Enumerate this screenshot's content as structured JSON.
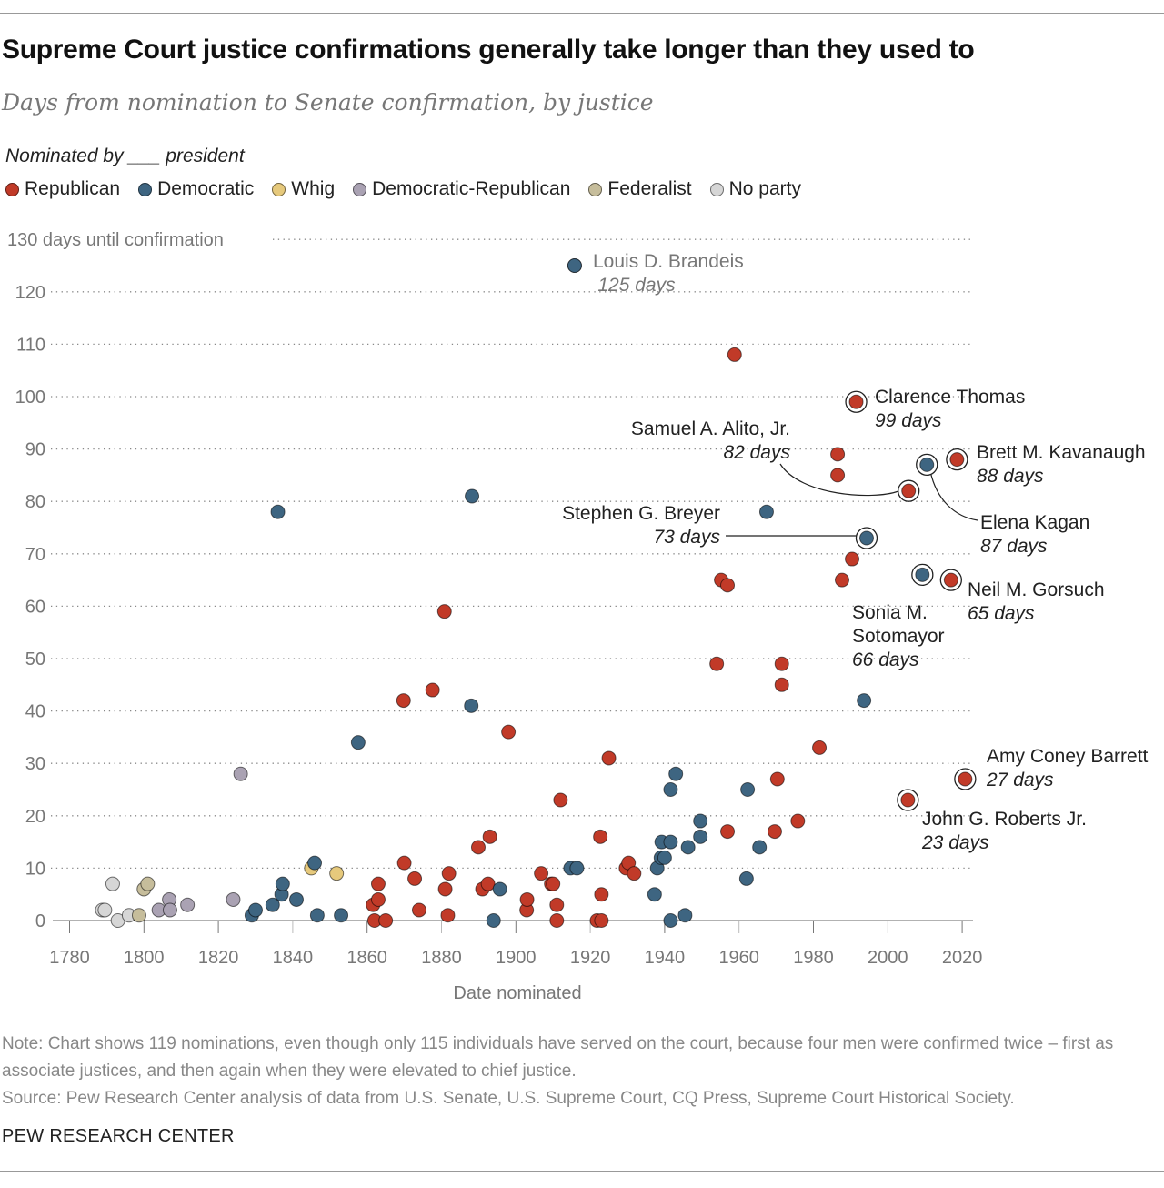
{
  "title": "Supreme Court justice confirmations generally take longer than they used to",
  "subtitle": "Days from nomination to Senate confirmation, by justice",
  "legend_title": "Nominated by ___ president",
  "parties": [
    {
      "key": "R",
      "name": "Republican",
      "color": "#c13a28"
    },
    {
      "key": "D",
      "name": "Democratic",
      "color": "#3e6581"
    },
    {
      "key": "W",
      "name": "Whig",
      "color": "#e6c97c"
    },
    {
      "key": "DR",
      "name": "Democratic-Republican",
      "color": "#aaa2b3"
    },
    {
      "key": "F",
      "name": "Federalist",
      "color": "#c6bd9b"
    },
    {
      "key": "N",
      "name": "No party",
      "color": "#d6d6d6"
    }
  ],
  "chart_data": {
    "type": "scatter",
    "xlabel": "Date nominated",
    "ylabel": "days until confirmation",
    "xlim": [
      1780,
      2020
    ],
    "ylim": [
      0,
      130
    ],
    "x_ticks": [
      1780,
      1800,
      1820,
      1840,
      1860,
      1880,
      1900,
      1920,
      1940,
      1960,
      1980,
      2000,
      2020
    ],
    "y_ticks": [
      0,
      10,
      20,
      30,
      40,
      50,
      60,
      70,
      80,
      90,
      100,
      110,
      120,
      130
    ],
    "y_top_label": "130 days until confirmation",
    "grid": "horizontal dotted",
    "points": [
      [
        1788.8,
        2,
        "N"
      ],
      [
        1789.5,
        2,
        "N"
      ],
      [
        1791.6,
        7,
        "N"
      ],
      [
        1793,
        0,
        "N"
      ],
      [
        1796,
        1,
        "N"
      ],
      [
        1798.7,
        1,
        "F"
      ],
      [
        1800,
        6,
        "F"
      ],
      [
        1801,
        7,
        "F"
      ],
      [
        1804,
        2,
        "DR"
      ],
      [
        1806.8,
        4,
        "DR"
      ],
      [
        1807,
        2,
        "DR"
      ],
      [
        1811.7,
        3,
        "DR"
      ],
      [
        1824,
        4,
        "DR"
      ],
      [
        1826,
        28,
        "DR"
      ],
      [
        1829,
        1,
        "D"
      ],
      [
        1830,
        2,
        "D"
      ],
      [
        1834.6,
        3,
        "D"
      ],
      [
        1837,
        5,
        "D"
      ],
      [
        1837.3,
        7,
        "D"
      ],
      [
        1841,
        4,
        "D"
      ],
      [
        1846.6,
        1,
        "D"
      ],
      [
        1853,
        1,
        "D"
      ],
      [
        1857.6,
        34,
        "D"
      ],
      [
        1836,
        78,
        "D"
      ],
      [
        1845,
        10,
        "W"
      ],
      [
        1851.8,
        9,
        "W"
      ],
      [
        1845.9,
        11,
        "D"
      ],
      [
        1861.6,
        3,
        "R"
      ],
      [
        1863,
        7,
        "R"
      ],
      [
        1863,
        4,
        "R"
      ],
      [
        1862,
        0,
        "R"
      ],
      [
        1865,
        0,
        "R"
      ],
      [
        1870,
        11,
        "R"
      ],
      [
        1872.8,
        8,
        "R"
      ],
      [
        1874,
        2,
        "R"
      ],
      [
        1877.6,
        44,
        "R"
      ],
      [
        1869.8,
        42,
        "R"
      ],
      [
        1880.8,
        59,
        "R"
      ],
      [
        1881,
        6,
        "R"
      ],
      [
        1882,
        9,
        "R"
      ],
      [
        1881.7,
        1,
        "R"
      ],
      [
        1888.2,
        81,
        "D"
      ],
      [
        1888,
        41,
        "D"
      ],
      [
        1889.9,
        14,
        "R"
      ],
      [
        1893,
        16,
        "R"
      ],
      [
        1891,
        6,
        "R"
      ],
      [
        1892.5,
        7,
        "R"
      ],
      [
        1895.7,
        6,
        "D"
      ],
      [
        1894,
        0,
        "D"
      ],
      [
        1898,
        36,
        "R"
      ],
      [
        1902.9,
        2,
        "R"
      ],
      [
        1903,
        4,
        "R"
      ],
      [
        1906.8,
        9,
        "R"
      ],
      [
        1909.5,
        7,
        "R"
      ],
      [
        1910,
        7,
        "R"
      ],
      [
        1911,
        3,
        "R"
      ],
      [
        1911,
        0,
        "R"
      ],
      [
        1912,
        23,
        "R"
      ],
      [
        1914.7,
        10,
        "D"
      ],
      [
        1916.4,
        10,
        "D"
      ],
      [
        1915.8,
        125,
        "D"
      ],
      [
        1922.7,
        16,
        "R"
      ],
      [
        1923,
        5,
        "R"
      ],
      [
        1921.8,
        0,
        "R"
      ],
      [
        1923,
        0,
        "R"
      ],
      [
        1925,
        31,
        "R"
      ],
      [
        1929.6,
        10,
        "R"
      ],
      [
        1930.3,
        11,
        "R"
      ],
      [
        1931.8,
        9,
        "R"
      ],
      [
        1937.3,
        5,
        "D"
      ],
      [
        1938,
        10,
        "D"
      ],
      [
        1939,
        12,
        "D"
      ],
      [
        1940,
        12,
        "D"
      ],
      [
        1939.2,
        15,
        "D"
      ],
      [
        1941.6,
        15,
        "D"
      ],
      [
        1941.6,
        25,
        "D"
      ],
      [
        1943,
        28,
        "D"
      ],
      [
        1941.6,
        0,
        "D"
      ],
      [
        1945.5,
        1,
        "D"
      ],
      [
        1946.3,
        14,
        "D"
      ],
      [
        1949.6,
        16,
        "D"
      ],
      [
        1949.6,
        19,
        "D"
      ],
      [
        1954,
        49,
        "R"
      ],
      [
        1955.2,
        65,
        "R"
      ],
      [
        1956.9,
        64,
        "R"
      ],
      [
        1956.9,
        17,
        "R"
      ],
      [
        1958.8,
        108,
        "R"
      ],
      [
        1962.3,
        25,
        "D"
      ],
      [
        1962,
        8,
        "D"
      ],
      [
        1965.5,
        14,
        "D"
      ],
      [
        1967.4,
        78,
        "D"
      ],
      [
        1969.6,
        17,
        "R"
      ],
      [
        1970.3,
        27,
        "R"
      ],
      [
        1971.5,
        49,
        "R"
      ],
      [
        1971.5,
        45,
        "R"
      ],
      [
        1975.8,
        19,
        "R"
      ],
      [
        1981.6,
        33,
        "R"
      ],
      [
        1986.5,
        85,
        "R"
      ],
      [
        1986.5,
        89,
        "R"
      ],
      [
        1987.7,
        65,
        "R"
      ],
      [
        1990.4,
        69,
        "R"
      ],
      [
        1993.6,
        42,
        "D"
      ]
    ],
    "highlighted": [
      {
        "name": "Louis D. Brandeis",
        "days_label": "125 days",
        "year": 1915.8,
        "days": 125,
        "party": "D",
        "ring": false
      },
      {
        "name": "Clarence Thomas",
        "days_label": "99 days",
        "year": 1991.5,
        "days": 99,
        "party": "R",
        "ring": true
      },
      {
        "name": "Samuel A. Alito, Jr.",
        "days_label": "82 days",
        "year": 2005.6,
        "days": 82,
        "party": "R",
        "ring": true
      },
      {
        "name": "Brett M. Kavanaugh",
        "days_label": "88 days",
        "year": 2018.6,
        "days": 88,
        "party": "R",
        "ring": true
      },
      {
        "name": "Elena Kagan",
        "days_label": "87 days",
        "year": 2010.5,
        "days": 87,
        "party": "D",
        "ring": true
      },
      {
        "name": "Stephen G. Breyer",
        "days_label": "73 days",
        "year": 1994.3,
        "days": 73,
        "party": "D",
        "ring": true
      },
      {
        "name": "Sonia M. Sotomayor",
        "name_line1": "Sonia M.",
        "name_line2": "Sotomayor",
        "days_label": "66 days",
        "year": 2009.3,
        "days": 66,
        "party": "D",
        "ring": true
      },
      {
        "name": "Neil M. Gorsuch",
        "days_label": "65 days",
        "year": 2017,
        "days": 65,
        "party": "R",
        "ring": true
      },
      {
        "name": "Amy Coney Barrett",
        "days_label": "27 days",
        "year": 2020.8,
        "days": 27,
        "party": "R",
        "ring": true
      },
      {
        "name": "John G. Roberts Jr.",
        "days_label": "23 days",
        "year": 2005.4,
        "days": 23,
        "party": "R",
        "ring": true
      }
    ]
  },
  "note": "Note: Chart shows 119 nominations, even though only 115 individuals have served on the court, because four men were confirmed twice – first as associate justices, and then again when they were elevated to chief justice.",
  "source": "Source: Pew Research Center analysis of data from U.S. Senate, U.S. Supreme Court, CQ Press, Supreme Court Historical Society.",
  "brand": "PEW RESEARCH CENTER"
}
